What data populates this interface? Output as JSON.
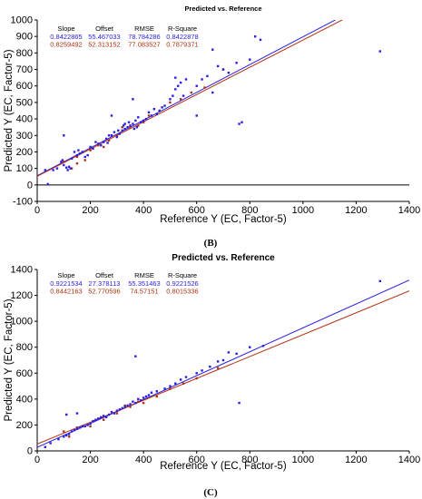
{
  "colors": {
    "blue": "#2a1ee0",
    "red": "#b03010",
    "zero": "#000000"
  },
  "chart_data": [
    {
      "type": "scatter",
      "title": "Predicted vs. Reference",
      "xlabel": "Reference Y (EC, Factor-5)",
      "ylabel": "Predicted Y (EC, Factor-5)",
      "xlim": [
        0,
        1400
      ],
      "ylim": [
        -100,
        1000
      ],
      "xticks": [
        "0",
        "200",
        "400",
        "600",
        "800",
        "1000",
        "1200",
        "1400"
      ],
      "yticks": [
        "-100",
        "0",
        "100",
        "200",
        "300",
        "400",
        "500",
        "600",
        "700",
        "800",
        "900",
        "1000"
      ],
      "zero_line": true,
      "stats_header": [
        "Slope",
        "Offset",
        "RMSE",
        "R-Square"
      ],
      "series": [
        {
          "slope": 0.8422865,
          "offset": 55.467033,
          "stats": [
            "0.8422865",
            "55.467033",
            "78.784286",
            "0.8422878"
          ],
          "points": [
            [
              40,
              5
            ],
            [
              60,
              90
            ],
            [
              75,
              100
            ],
            [
              90,
              140
            ],
            [
              95,
              150
            ],
            [
              100,
              120
            ],
            [
              110,
              105
            ],
            [
              115,
              90
            ],
            [
              120,
              110
            ],
            [
              125,
              100
            ],
            [
              130,
              160
            ],
            [
              140,
              200
            ],
            [
              150,
              180
            ],
            [
              155,
              210
            ],
            [
              160,
              190
            ],
            [
              170,
              200
            ],
            [
              180,
              170
            ],
            [
              190,
              180
            ],
            [
              200,
              230
            ],
            [
              210,
              220
            ],
            [
              220,
              260
            ],
            [
              230,
              250
            ],
            [
              240,
              240
            ],
            [
              250,
              260
            ],
            [
              260,
              280
            ],
            [
              265,
              255
            ],
            [
              270,
              300
            ],
            [
              280,
              300
            ],
            [
              290,
              320
            ],
            [
              300,
              290
            ],
            [
              305,
              330
            ],
            [
              310,
              310
            ],
            [
              320,
              330
            ],
            [
              325,
              360
            ],
            [
              330,
              340
            ],
            [
              340,
              350
            ],
            [
              345,
              380
            ],
            [
              350,
              360
            ],
            [
              360,
              370
            ],
            [
              365,
              340
            ],
            [
              370,
              390
            ],
            [
              375,
              350
            ],
            [
              380,
              410
            ],
            [
              390,
              380
            ],
            [
              400,
              390
            ],
            [
              410,
              400
            ],
            [
              420,
              440
            ],
            [
              430,
              420
            ],
            [
              440,
              460
            ],
            [
              450,
              430
            ],
            [
              460,
              450
            ],
            [
              470,
              470
            ],
            [
              480,
              480
            ],
            [
              500,
              520
            ],
            [
              510,
              540
            ],
            [
              520,
              580
            ],
            [
              530,
              600
            ],
            [
              540,
              620
            ],
            [
              550,
              540
            ],
            [
              600,
              600
            ],
            [
              620,
              640
            ],
            [
              640,
              660
            ],
            [
              660,
              560
            ],
            [
              680,
              720
            ],
            [
              700,
              700
            ],
            [
              720,
              680
            ],
            [
              750,
              740
            ],
            [
              800,
              760
            ],
            [
              820,
              900
            ],
            [
              840,
              880
            ],
            [
              1290,
              810
            ],
            [
              30,
              90
            ],
            [
              100,
              300
            ],
            [
              280,
              420
            ],
            [
              330,
              370
            ],
            [
              360,
              520
            ],
            [
              520,
              650
            ],
            [
              560,
              640
            ],
            [
              600,
              420
            ],
            [
              770,
              380
            ],
            [
              760,
              370
            ],
            [
              660,
              820
            ]
          ]
        },
        {
          "slope": 0.8259492,
          "offset": 52.313152,
          "stats": [
            "0.8259492",
            "52.313152",
            "77.083527",
            "0.7879371"
          ],
          "points": [
            [
              100,
              140
            ],
            [
              130,
              100
            ],
            [
              150,
              130
            ],
            [
              180,
              150
            ],
            [
              200,
              210
            ],
            [
              230,
              240
            ],
            [
              270,
              270
            ],
            [
              300,
              300
            ],
            [
              320,
              350
            ],
            [
              350,
              350
            ],
            [
              380,
              360
            ],
            [
              420,
              420
            ],
            [
              460,
              450
            ],
            [
              500,
              500
            ],
            [
              540,
              520
            ],
            [
              580,
              560
            ],
            [
              630,
              590
            ],
            [
              700,
              700
            ],
            [
              150,
              170
            ],
            [
              250,
              230
            ],
            [
              400,
              380
            ]
          ]
        }
      ],
      "panel_label": "(B)"
    },
    {
      "type": "scatter",
      "title": "Predicted vs. Reference",
      "xlabel": "Reference Y (EC, Factor-5)",
      "ylabel": "Predicted Y (EC, Factor-5)",
      "xlim": [
        0,
        1400
      ],
      "ylim": [
        0,
        1400
      ],
      "xticks": [
        "0",
        "200",
        "400",
        "600",
        "800",
        "1000",
        "1200",
        "1400"
      ],
      "yticks": [
        "0",
        "200",
        "400",
        "600",
        "800",
        "1000",
        "1200",
        "1400"
      ],
      "zero_line": false,
      "stats_header": [
        "Slope",
        "Offset",
        "RMSE",
        "R-Square"
      ],
      "series": [
        {
          "slope": 0.9221534,
          "offset": 27.378113,
          "stats": [
            "0.9221534",
            "27.378113",
            "55.351463",
            "0.9221526"
          ],
          "points": [
            [
              30,
              30
            ],
            [
              50,
              60
            ],
            [
              80,
              90
            ],
            [
              100,
              110
            ],
            [
              110,
              120
            ],
            [
              120,
              130
            ],
            [
              130,
              150
            ],
            [
              140,
              160
            ],
            [
              150,
              170
            ],
            [
              160,
              180
            ],
            [
              170,
              190
            ],
            [
              180,
              190
            ],
            [
              190,
              200
            ],
            [
              200,
              210
            ],
            [
              210,
              230
            ],
            [
              220,
              240
            ],
            [
              230,
              250
            ],
            [
              240,
              260
            ],
            [
              250,
              270
            ],
            [
              260,
              260
            ],
            [
              270,
              280
            ],
            [
              280,
              300
            ],
            [
              290,
              290
            ],
            [
              300,
              310
            ],
            [
              310,
              320
            ],
            [
              320,
              330
            ],
            [
              330,
              340
            ],
            [
              340,
              350
            ],
            [
              350,
              360
            ],
            [
              360,
              380
            ],
            [
              370,
              370
            ],
            [
              380,
              400
            ],
            [
              390,
              390
            ],
            [
              400,
              410
            ],
            [
              410,
              420
            ],
            [
              420,
              430
            ],
            [
              430,
              450
            ],
            [
              450,
              460
            ],
            [
              480,
              480
            ],
            [
              500,
              500
            ],
            [
              520,
              520
            ],
            [
              540,
              550
            ],
            [
              560,
              570
            ],
            [
              600,
              600
            ],
            [
              620,
              620
            ],
            [
              650,
              650
            ],
            [
              680,
              690
            ],
            [
              700,
              700
            ],
            [
              720,
              760
            ],
            [
              750,
              750
            ],
            [
              800,
              800
            ],
            [
              850,
              810
            ],
            [
              1290,
              1310
            ],
            [
              370,
              730
            ],
            [
              760,
              370
            ],
            [
              110,
              280
            ],
            [
              150,
              290
            ]
          ]
        },
        {
          "slope": 0.8442163,
          "offset": 52.770596,
          "stats": [
            "0.8442163",
            "52.770596",
            "74.57151",
            "0.8015336"
          ],
          "points": [
            [
              100,
              150
            ],
            [
              150,
              180
            ],
            [
              200,
              190
            ],
            [
              250,
              240
            ],
            [
              300,
              290
            ],
            [
              350,
              340
            ],
            [
              400,
              370
            ],
            [
              450,
              420
            ],
            [
              500,
              480
            ],
            [
              550,
              520
            ],
            [
              600,
              560
            ],
            [
              680,
              640
            ],
            [
              120,
              110
            ],
            [
              330,
              350
            ],
            [
              380,
              380
            ]
          ]
        }
      ],
      "panel_label": "(C)"
    }
  ]
}
